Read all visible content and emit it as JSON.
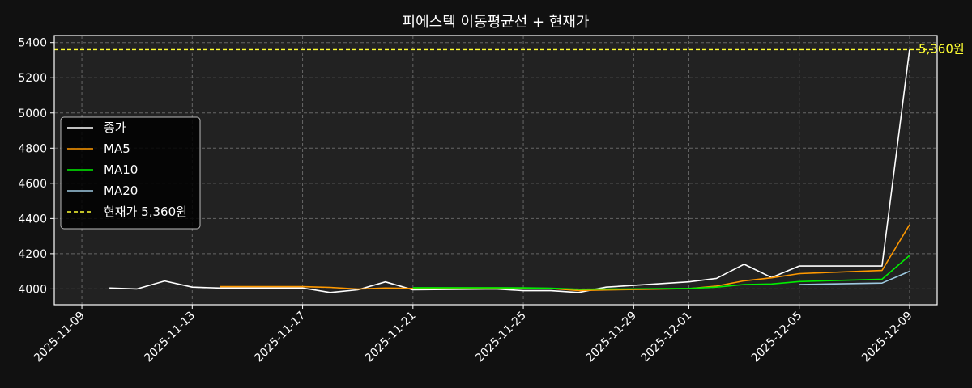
{
  "chart_data": {
    "type": "line",
    "title": "피에스텍 이동평균선 + 현재가",
    "xlabel": "",
    "ylabel": "",
    "grid": true,
    "legend_position": "center-left",
    "xlim": [
      "2025-11-08",
      "2025-12-10"
    ],
    "ylim": [
      3910,
      5440
    ],
    "x_ticks": [
      "2025-11-09",
      "2025-11-13",
      "2025-11-17",
      "2025-11-21",
      "2025-11-25",
      "2025-11-29",
      "2025-12-01",
      "2025-12-05",
      "2025-12-09"
    ],
    "y_ticks": [
      4000,
      4200,
      4400,
      4600,
      4800,
      5000,
      5200,
      5400
    ],
    "series": [
      {
        "name": "종가",
        "color": "#ffffff",
        "points": [
          [
            "2025-11-10",
            4005
          ],
          [
            "2025-11-11",
            4000
          ],
          [
            "2025-11-12",
            4045
          ],
          [
            "2025-11-13",
            4010
          ],
          [
            "2025-11-14",
            4005
          ],
          [
            "2025-11-17",
            4005
          ],
          [
            "2025-11-18",
            3980
          ],
          [
            "2025-11-19",
            3995
          ],
          [
            "2025-11-20",
            4040
          ],
          [
            "2025-11-21",
            3995
          ],
          [
            "2025-11-24",
            4000
          ],
          [
            "2025-11-25",
            3990
          ],
          [
            "2025-11-26",
            3990
          ],
          [
            "2025-11-27",
            3980
          ],
          [
            "2025-11-28",
            4010
          ],
          [
            "2025-12-01",
            4040
          ],
          [
            "2025-12-02",
            4060
          ],
          [
            "2025-12-03",
            4140
          ],
          [
            "2025-12-04",
            4065
          ],
          [
            "2025-12-05",
            4130
          ],
          [
            "2025-12-08",
            4130
          ],
          [
            "2025-12-09",
            5360
          ]
        ]
      },
      {
        "name": "MA5",
        "color": "#ff9900",
        "points": [
          [
            "2025-11-14",
            4013
          ],
          [
            "2025-11-17",
            4013
          ],
          [
            "2025-11-18",
            4009
          ],
          [
            "2025-11-19",
            3999
          ],
          [
            "2025-11-20",
            4005
          ],
          [
            "2025-11-21",
            4003
          ],
          [
            "2025-11-24",
            4004
          ],
          [
            "2025-11-25",
            4004
          ],
          [
            "2025-11-26",
            4003
          ],
          [
            "2025-11-27",
            3991
          ],
          [
            "2025-11-28",
            3994
          ],
          [
            "2025-12-01",
            4002
          ],
          [
            "2025-12-02",
            4016
          ],
          [
            "2025-12-03",
            4046
          ],
          [
            "2025-12-04",
            4063
          ],
          [
            "2025-12-05",
            4087
          ],
          [
            "2025-12-08",
            4105
          ],
          [
            "2025-12-09",
            4365
          ]
        ]
      },
      {
        "name": "MA10",
        "color": "#00ee00",
        "points": [
          [
            "2025-11-21",
            4007
          ],
          [
            "2025-11-24",
            4007
          ],
          [
            "2025-11-25",
            4006
          ],
          [
            "2025-11-26",
            4004
          ],
          [
            "2025-11-27",
            3998
          ],
          [
            "2025-11-28",
            3999
          ],
          [
            "2025-12-01",
            4003
          ],
          [
            "2025-12-02",
            4010
          ],
          [
            "2025-12-03",
            4025
          ],
          [
            "2025-12-04",
            4028
          ],
          [
            "2025-12-05",
            4042
          ],
          [
            "2025-12-08",
            4055
          ],
          [
            "2025-12-09",
            4190
          ]
        ]
      },
      {
        "name": "MA20",
        "color": "#9ecae1",
        "points": [
          [
            "2025-12-05",
            4025
          ],
          [
            "2025-12-08",
            4033
          ],
          [
            "2025-12-09",
            4100
          ]
        ]
      }
    ],
    "current_price": {
      "value": 5360,
      "legend_label": "현재가 5,360원",
      "annotation": "5,360원",
      "color": "#ffff33"
    }
  },
  "colors": {
    "background": "#111111",
    "plot_background": "#222222",
    "grid": "#666666",
    "axis": "#ffffff"
  }
}
